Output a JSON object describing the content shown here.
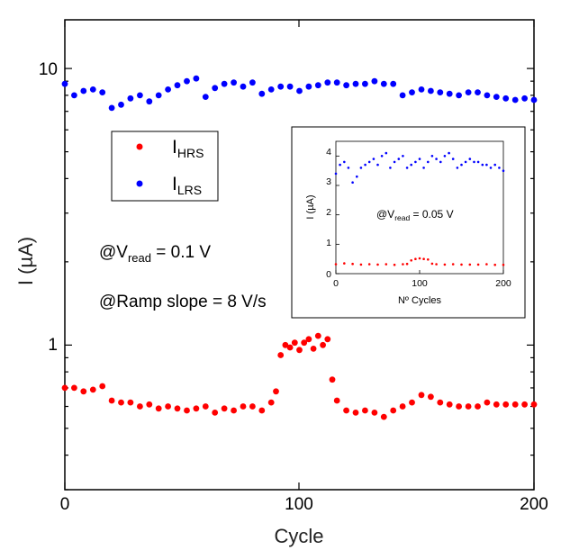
{
  "colors": {
    "hrs": "#ff0000",
    "lrs": "#0000ff",
    "axis": "#000000"
  },
  "annotations": {
    "vread_prefix": "@V",
    "vread_sub": "read",
    "vread_value": " = 0.1 V",
    "ramp": "@Ramp slope = 8 V/s"
  },
  "chart_data": [
    {
      "type": "scatter",
      "title": "",
      "xlabel": "Cycle",
      "ylabel": "I (µA)",
      "yscale": "log",
      "xlim": [
        0,
        200
      ],
      "ylim": [
        0.3,
        15
      ],
      "xticks": [
        0,
        100,
        200
      ],
      "yticks": [
        1,
        10
      ],
      "legend": {
        "position": "left",
        "entries": [
          {
            "main": "I",
            "sub": "HRS"
          },
          {
            "main": "I",
            "sub": "LRS"
          }
        ]
      },
      "series": [
        {
          "name": "I_HRS",
          "color": "red",
          "x": [
            0,
            4,
            8,
            12,
            16,
            20,
            24,
            28,
            32,
            36,
            40,
            44,
            48,
            52,
            56,
            60,
            64,
            68,
            72,
            76,
            80,
            84,
            88,
            90,
            92,
            94,
            96,
            98,
            100,
            102,
            104,
            106,
            108,
            110,
            112,
            114,
            116,
            120,
            124,
            128,
            132,
            136,
            140,
            144,
            148,
            152,
            156,
            160,
            164,
            168,
            172,
            176,
            180,
            184,
            188,
            192,
            196,
            200
          ],
          "values": [
            0.7,
            0.7,
            0.68,
            0.69,
            0.71,
            0.63,
            0.62,
            0.62,
            0.6,
            0.61,
            0.59,
            0.6,
            0.59,
            0.58,
            0.59,
            0.6,
            0.57,
            0.59,
            0.58,
            0.6,
            0.6,
            0.58,
            0.62,
            0.68,
            0.92,
            1.0,
            0.98,
            1.02,
            0.96,
            1.02,
            1.05,
            0.97,
            1.08,
            1.0,
            1.05,
            0.75,
            0.63,
            0.58,
            0.57,
            0.58,
            0.57,
            0.55,
            0.58,
            0.6,
            0.62,
            0.66,
            0.65,
            0.62,
            0.61,
            0.6,
            0.6,
            0.6,
            0.62,
            0.61,
            0.61,
            0.61,
            0.61,
            0.61
          ]
        },
        {
          "name": "I_LRS",
          "color": "blue",
          "x": [
            0,
            4,
            8,
            12,
            16,
            20,
            24,
            28,
            32,
            36,
            40,
            44,
            48,
            52,
            56,
            60,
            64,
            68,
            72,
            76,
            80,
            84,
            88,
            92,
            96,
            100,
            104,
            108,
            112,
            116,
            120,
            124,
            128,
            132,
            136,
            140,
            144,
            148,
            152,
            156,
            160,
            164,
            168,
            172,
            176,
            180,
            184,
            188,
            192,
            196,
            200
          ],
          "values": [
            8.8,
            8.0,
            8.3,
            8.4,
            8.2,
            7.2,
            7.4,
            7.8,
            8.0,
            7.6,
            8.0,
            8.4,
            8.7,
            9.0,
            9.2,
            7.9,
            8.5,
            8.8,
            8.9,
            8.6,
            8.9,
            8.1,
            8.4,
            8.6,
            8.6,
            8.3,
            8.6,
            8.7,
            8.9,
            8.9,
            8.7,
            8.8,
            8.8,
            9.0,
            8.8,
            8.8,
            8.0,
            8.2,
            8.4,
            8.3,
            8.2,
            8.1,
            8.0,
            8.2,
            8.2,
            8.0,
            7.9,
            7.8,
            7.7,
            7.8,
            7.7
          ]
        }
      ]
    },
    {
      "type": "scatter",
      "title": "",
      "xlabel": "Nº Cycles",
      "ylabel": "I (µA)",
      "xlim": [
        0,
        200
      ],
      "ylim": [
        0,
        4.5
      ],
      "xticks": [
        0,
        100,
        200
      ],
      "yticks": [
        0,
        1,
        2,
        3,
        4
      ],
      "annotation": {
        "prefix": "@V",
        "sub": "read",
        "value": " = 0.05 V"
      },
      "series": [
        {
          "name": "HRS",
          "color": "red",
          "x": [
            0,
            10,
            20,
            30,
            40,
            50,
            60,
            70,
            80,
            85,
            90,
            95,
            100,
            105,
            110,
            115,
            120,
            130,
            140,
            150,
            160,
            170,
            180,
            190,
            200
          ],
          "values": [
            0.32,
            0.35,
            0.33,
            0.31,
            0.32,
            0.31,
            0.32,
            0.3,
            0.32,
            0.33,
            0.45,
            0.5,
            0.52,
            0.5,
            0.48,
            0.34,
            0.32,
            0.31,
            0.32,
            0.31,
            0.31,
            0.31,
            0.32,
            0.3,
            0.3
          ]
        },
        {
          "name": "LRS",
          "color": "blue",
          "x": [
            0,
            5,
            10,
            15,
            20,
            25,
            30,
            35,
            40,
            45,
            50,
            55,
            60,
            65,
            70,
            75,
            80,
            85,
            90,
            95,
            100,
            105,
            110,
            115,
            120,
            125,
            130,
            135,
            140,
            145,
            150,
            155,
            160,
            165,
            170,
            175,
            180,
            185,
            190,
            195,
            200
          ],
          "values": [
            3.4,
            3.7,
            3.8,
            3.6,
            3.1,
            3.3,
            3.6,
            3.7,
            3.8,
            3.9,
            3.7,
            4.0,
            4.1,
            3.6,
            3.8,
            3.9,
            4.0,
            3.6,
            3.7,
            3.8,
            3.9,
            3.6,
            3.8,
            4.0,
            3.9,
            3.8,
            4.0,
            4.1,
            3.9,
            3.6,
            3.7,
            3.8,
            3.9,
            3.8,
            3.8,
            3.7,
            3.7,
            3.6,
            3.7,
            3.6,
            3.5
          ]
        }
      ]
    }
  ]
}
